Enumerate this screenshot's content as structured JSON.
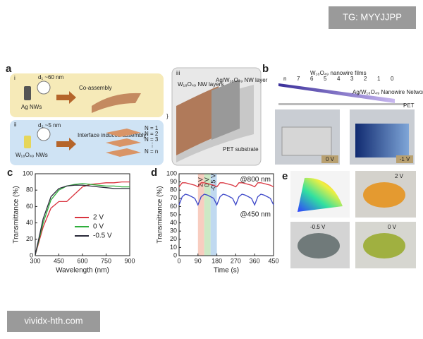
{
  "watermark": "TG: MYYJJPP",
  "footer": "vividx-hth.com",
  "panel_a": {
    "label": "a",
    "step_i": "i",
    "step_ii": "ii",
    "step_iii": "iii",
    "ag_nws": "Ag NWs",
    "d1": "d₁ ~60 nm",
    "co_assembly": "Co-assembly",
    "w_nws": "W₁₈O₄₉ NWs",
    "d2": "d₂ ~5 nm",
    "interface": "Interface induced assembly",
    "layers": [
      "N = 1",
      "N = 2",
      "N = 3",
      "⋮",
      "N = n"
    ],
    "w_layers": "W₁₈O₄₉ NW layers",
    "ag_layer": "Ag/W₁₈O₄₉ NW layer",
    "pet": "PET substrate"
  },
  "panel_b": {
    "label": "b",
    "films": "W₁₈O₄₉ nanowire films",
    "steps": [
      "n",
      "7",
      "6",
      "5",
      "4",
      "3",
      "2",
      "1",
      "0"
    ],
    "network": "Ag/W₁₈O₄₉ Nanowire Network",
    "pet": "PET",
    "photo_labels": [
      "0 V",
      "-1 V"
    ]
  },
  "panel_e": {
    "label": "e",
    "photo_labels": [
      "2 V",
      "-0.5 V",
      "0 V"
    ]
  },
  "chart_data": [
    {
      "type": "line",
      "panel_label": "c",
      "x": [
        300,
        350,
        400,
        450,
        500,
        550,
        600,
        650,
        700,
        750,
        800,
        850,
        900
      ],
      "series": [
        {
          "name": "2 V",
          "color": "#d9343f",
          "values": [
            1,
            35,
            58,
            66,
            66,
            75,
            84,
            87,
            88,
            89,
            89,
            90,
            90
          ]
        },
        {
          "name": "0 V",
          "color": "#2fae3c",
          "values": [
            1,
            40,
            68,
            80,
            85,
            87,
            88,
            87,
            86,
            85,
            85,
            84,
            84
          ]
        },
        {
          "name": "-0.5 V",
          "color": "#2a2a3a",
          "values": [
            1,
            45,
            72,
            82,
            85,
            86,
            86,
            85,
            84,
            83,
            82,
            82,
            82
          ]
        }
      ],
      "xlim": [
        300,
        900
      ],
      "xticks": [
        300,
        450,
        600,
        750,
        900
      ],
      "ylim": [
        0,
        100
      ],
      "yticks": [
        0,
        20,
        40,
        60,
        80,
        100
      ],
      "xlabel": "Wavelength (nm)",
      "ylabel": "Transmittance (%)",
      "legend": "right"
    },
    {
      "type": "line",
      "panel_label": "d",
      "x": [
        0,
        15,
        30,
        45,
        60,
        75,
        90,
        105,
        120,
        135,
        150,
        165,
        180,
        195,
        210,
        225,
        240,
        255,
        270,
        285,
        300,
        315,
        330,
        345,
        360,
        375,
        390,
        405,
        420,
        435,
        450
      ],
      "series": [
        {
          "name": "@800 nm",
          "color": "#d9343f",
          "values": [
            84,
            89,
            89,
            88,
            87,
            86,
            84,
            89,
            89,
            88,
            87,
            86,
            84,
            89,
            89,
            88,
            87,
            86,
            84,
            89,
            89,
            88,
            87,
            86,
            84,
            89,
            89,
            88,
            87,
            86,
            84
          ]
        },
        {
          "name": "@450 nm",
          "color": "#3a45c8",
          "values": [
            62,
            72,
            75,
            74,
            72,
            70,
            62,
            72,
            75,
            74,
            72,
            70,
            62,
            72,
            75,
            74,
            72,
            70,
            62,
            72,
            75,
            74,
            72,
            70,
            62,
            72,
            75,
            74,
            72,
            70,
            62
          ]
        }
      ],
      "bands": [
        {
          "label": "2 V",
          "range": [
            90,
            120
          ],
          "color": "#f6c0b0"
        },
        {
          "label": "0 V",
          "range": [
            120,
            150
          ],
          "color": "#bfe4b6"
        },
        {
          "label": "-0.5 V",
          "range": [
            150,
            180
          ],
          "color": "#b0cfec"
        }
      ],
      "xlim": [
        0,
        450
      ],
      "xticks": [
        0,
        90,
        180,
        270,
        360,
        450
      ],
      "ylim": [
        0,
        100
      ],
      "yticks": [
        0,
        10,
        20,
        30,
        40,
        50,
        60,
        70,
        80,
        90,
        100
      ],
      "xlabel": "Time (s)",
      "ylabel": "Transmittance (%)",
      "legend": "inline"
    }
  ]
}
